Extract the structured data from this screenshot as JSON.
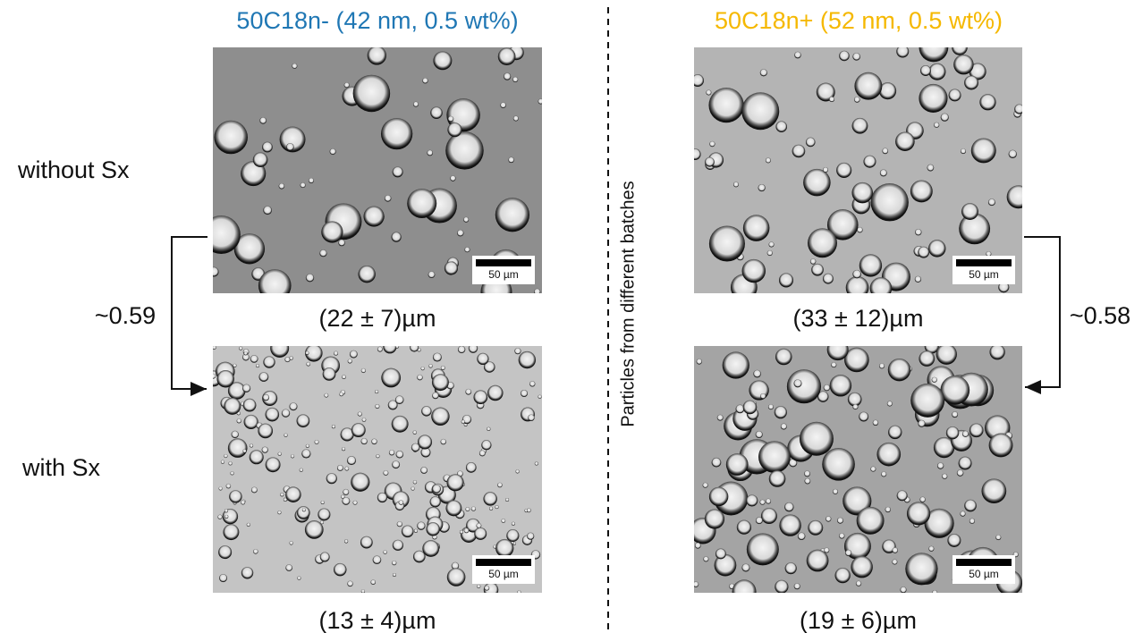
{
  "panels": [
    {
      "title": "50C18n- (42 nm, 0.5 wt%)",
      "images": [
        {
          "caption": "(22 ± 7)µm",
          "scale_bar": "50 µm"
        },
        {
          "caption": "(13 ± 4)µm",
          "scale_bar": "50 µm"
        }
      ]
    },
    {
      "title": "50C18n+ (52 nm, 0.5 wt%)",
      "images": [
        {
          "caption": "(33 ± 12)µm",
          "scale_bar": "50 µm"
        },
        {
          "caption": "(19 ± 6)µm",
          "scale_bar": "50 µm"
        }
      ]
    }
  ],
  "rows": [
    "without Sx",
    "with Sx"
  ],
  "ratios": [
    "~0.59",
    "~0.58"
  ],
  "divider_label": "Particles from different batches"
}
